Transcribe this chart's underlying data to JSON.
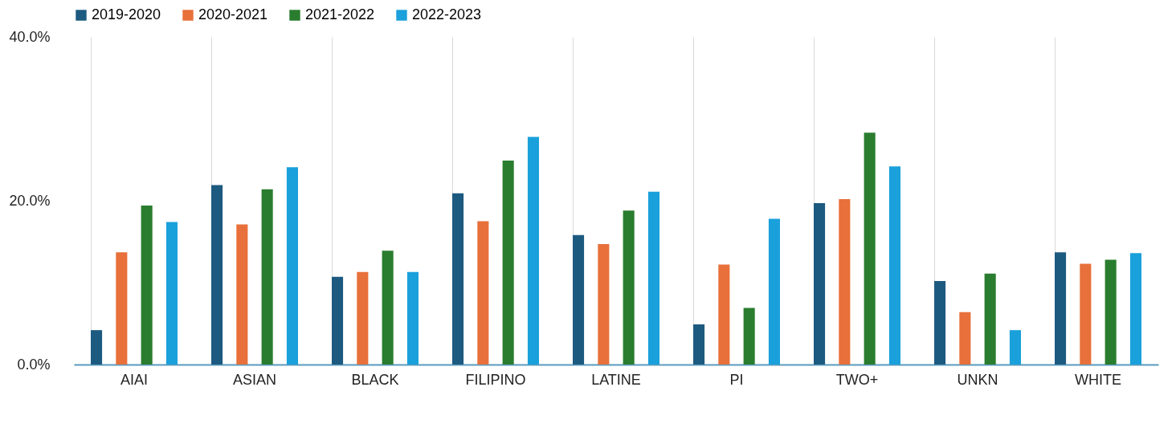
{
  "chart_data": {
    "type": "bar",
    "categories": [
      "AIAI",
      "ASIAN",
      "BLACK",
      "FILIPINO",
      "LATINE",
      "PI",
      "TWO+",
      "UNKN",
      "WHITE"
    ],
    "series": [
      {
        "name": "2019-2020",
        "color": "#1d5a80",
        "values": [
          4.2,
          21.9,
          10.7,
          20.9,
          15.8,
          4.9,
          19.7,
          10.2,
          13.7
        ]
      },
      {
        "name": "2020-2021",
        "color": "#e8703a",
        "values": [
          13.7,
          17.1,
          11.3,
          17.5,
          14.7,
          12.2,
          20.2,
          6.4,
          12.3
        ]
      },
      {
        "name": "2021-2022",
        "color": "#2a7d2e",
        "values": [
          19.4,
          21.4,
          13.9,
          24.9,
          18.8,
          6.9,
          28.3,
          11.1,
          12.8
        ]
      },
      {
        "name": "2022-2023",
        "color": "#1aa0db",
        "values": [
          17.4,
          24.1,
          11.3,
          27.8,
          21.1,
          17.8,
          24.2,
          4.2,
          13.6
        ]
      }
    ],
    "ylim": [
      0,
      40
    ],
    "yticks": [
      {
        "value": 0,
        "label": "0.0%"
      },
      {
        "value": 20,
        "label": "20.0%"
      },
      {
        "value": 40,
        "label": "40.0%"
      }
    ],
    "grid": "x",
    "legend": "top"
  }
}
